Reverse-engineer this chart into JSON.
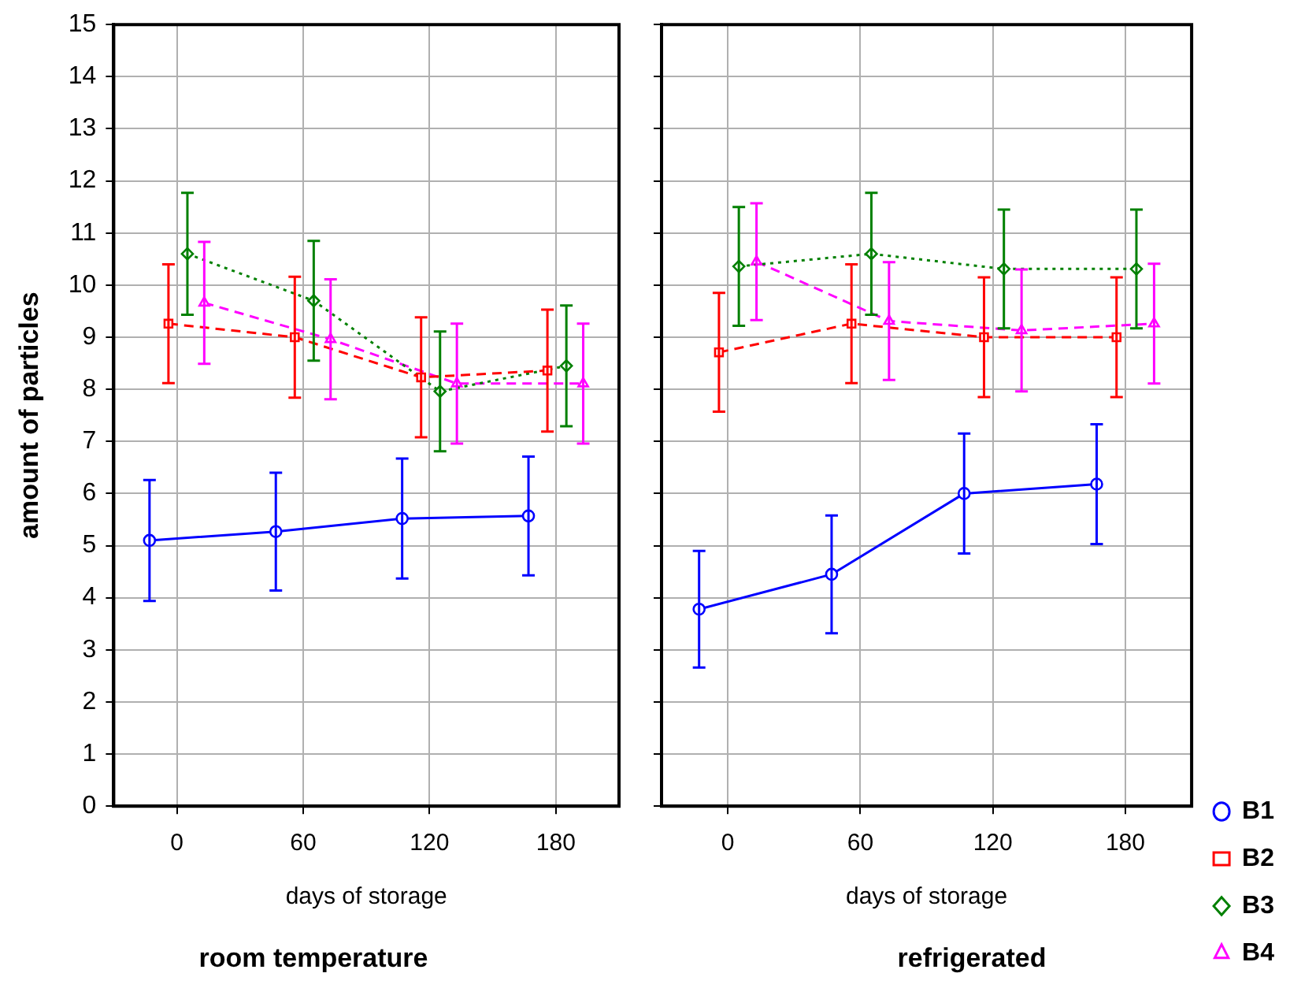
{
  "chart_data": [
    {
      "type": "line",
      "title": "room temperature",
      "xlabel": "days of storage",
      "ylabel": "amount of particles",
      "xlim": [
        -30,
        210
      ],
      "xticks": [
        0,
        60,
        120,
        180
      ],
      "ylim": [
        0,
        15
      ],
      "yticks": [
        0,
        1,
        2,
        3,
        4,
        5,
        6,
        7,
        8,
        9,
        10,
        11,
        12,
        13,
        14,
        15
      ],
      "grid": true,
      "legend": false,
      "series": [
        {
          "color": "#0000ff",
          "marker": "circle",
          "line_style": "solid",
          "x": [
            -13,
            47,
            107,
            167
          ],
          "values": [
            5.1,
            5.27,
            5.52,
            5.57
          ],
          "errors": [
            1.16,
            1.13,
            1.15,
            1.14
          ]
        },
        {
          "color": "#ff0000",
          "marker": "square",
          "line_style": "dashed",
          "x": [
            -4,
            56,
            116,
            176
          ],
          "values": [
            9.26,
            9.0,
            8.23,
            8.36
          ],
          "errors": [
            1.14,
            1.16,
            1.15,
            1.17
          ]
        },
        {
          "color": "#008000",
          "marker": "diamond",
          "line_style": "dotted",
          "x": [
            5,
            65,
            125,
            185
          ],
          "values": [
            10.6,
            9.7,
            7.96,
            8.45
          ],
          "errors": [
            1.17,
            1.15,
            1.15,
            1.16
          ]
        },
        {
          "color": "#ff00ff",
          "marker": "triangle",
          "line_style": "dashed",
          "x": [
            13,
            73,
            133,
            193
          ],
          "values": [
            9.66,
            8.96,
            8.11,
            8.11
          ],
          "errors": [
            1.17,
            1.15,
            1.15,
            1.15
          ]
        }
      ]
    },
    {
      "type": "line",
      "title": "refrigerated",
      "xlabel": "days of storage",
      "xlim": [
        -30,
        210
      ],
      "xticks": [
        0,
        60,
        120,
        180
      ],
      "ylim": [
        0,
        15
      ],
      "yticks": [
        0,
        1,
        2,
        3,
        4,
        5,
        6,
        7,
        8,
        9,
        10,
        11,
        12,
        13,
        14,
        15
      ],
      "grid": true,
      "legend": "bottom right",
      "tick_labels": "x",
      "series": [
        {
          "name": "B1",
          "color": "#0000ff",
          "marker": "circle",
          "line_style": "solid",
          "x": [
            -13,
            47,
            107,
            167
          ],
          "values": [
            3.78,
            4.45,
            6.0,
            6.18
          ],
          "errors": [
            1.12,
            1.13,
            1.15,
            1.15
          ]
        },
        {
          "name": "B2",
          "color": "#ff0000",
          "marker": "square",
          "line_style": "dashed",
          "x": [
            -4,
            56,
            116,
            176
          ],
          "values": [
            8.71,
            9.26,
            9.0,
            9.0
          ],
          "errors": [
            1.14,
            1.14,
            1.15,
            1.15
          ]
        },
        {
          "name": "B3",
          "color": "#008000",
          "marker": "diamond",
          "line_style": "dotted",
          "x": [
            5,
            65,
            125,
            185
          ],
          "values": [
            10.36,
            10.6,
            10.31,
            10.31
          ],
          "errors": [
            1.14,
            1.17,
            1.14,
            1.14
          ]
        },
        {
          "name": "B4",
          "color": "#ff00ff",
          "marker": "triangle",
          "line_style": "dashed",
          "x": [
            13,
            73,
            133,
            193
          ],
          "values": [
            10.45,
            9.31,
            9.13,
            9.26
          ],
          "errors": [
            1.12,
            1.13,
            1.17,
            1.15
          ]
        }
      ]
    }
  ]
}
